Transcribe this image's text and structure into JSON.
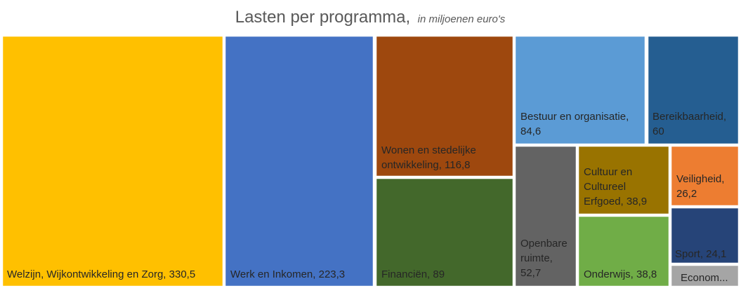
{
  "chart_data": {
    "type": "treemap",
    "title": "Lasten per programma,",
    "subtitle": "in miljoenen euro's",
    "items": [
      {
        "name": "Welzijn, Wijkontwikkeling en Zorg",
        "value": 330.5,
        "label": "Welzijn, Wijkontwikkeling en Zorg, 330,5",
        "color": "#FFC000",
        "text_color": "#262626"
      },
      {
        "name": "Werk en Inkomen",
        "value": 223.3,
        "label": "Werk en Inkomen, 223,3",
        "color": "#4472C4",
        "text_color": "#262626"
      },
      {
        "name": "Wonen en stedelijke ontwikkeling",
        "value": 116.8,
        "label": "Wonen en stedelijke ontwikkeling, 116,8",
        "color": "#9E480E",
        "text_color": "#262626"
      },
      {
        "name": "Financiën",
        "value": 89,
        "label": "Financiën, 89",
        "color": "#43682B",
        "text_color": "#262626"
      },
      {
        "name": "Bestuur en organisatie",
        "value": 84.6,
        "label": "Bestuur en organisatie, 84,6",
        "color": "#5B9BD5",
        "text_color": "#262626"
      },
      {
        "name": "Bereikbaarheid",
        "value": 60,
        "label": "Bereikbaarheid, 60",
        "color": "#255E91",
        "text_color": "#262626"
      },
      {
        "name": "Openbare ruimte",
        "value": 52.7,
        "label": "Openbare ruimte, 52,7",
        "color": "#636363",
        "text_color": "#262626"
      },
      {
        "name": "Cultuur en Cultureel Erfgoed",
        "value": 38.9,
        "label": "Cultuur en Cultureel Erfgoed, 38,9",
        "color": "#997300",
        "text_color": "#262626"
      },
      {
        "name": "Onderwijs",
        "value": 38.8,
        "label": "Onderwijs, 38,8",
        "color": "#70AD47",
        "text_color": "#262626"
      },
      {
        "name": "Veiligheid",
        "value": 26.2,
        "label": "Veiligheid, 26,2",
        "color": "#ED7D31",
        "text_color": "#262626"
      },
      {
        "name": "Sport",
        "value": 24.1,
        "label": "Sport, 24,1",
        "color": "#264478",
        "text_color": "#262626"
      },
      {
        "name": "Econom...",
        "value": null,
        "label": "Econom...",
        "color": "#A5A5A5",
        "text_color": "#262626"
      }
    ]
  }
}
